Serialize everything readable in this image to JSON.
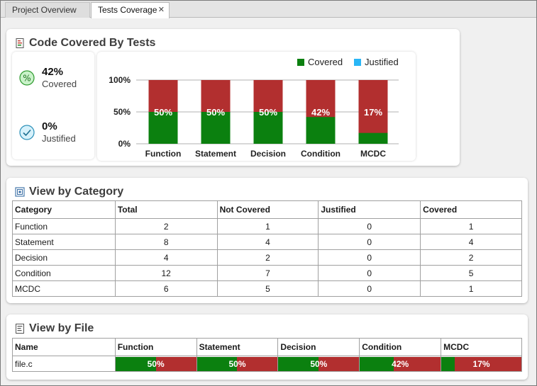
{
  "tabs": [
    {
      "label": "Project Overview",
      "active": false
    },
    {
      "label": "Tests Coverage",
      "active": true,
      "close": "✕"
    }
  ],
  "summary": {
    "title": "Code Covered By Tests",
    "covered": {
      "value": "42%",
      "label": "Covered"
    },
    "justified": {
      "value": "0%",
      "label": "Justified"
    }
  },
  "chart_data": {
    "type": "bar",
    "stacked": true,
    "categories": [
      "Function",
      "Statement",
      "Decision",
      "Condition",
      "MCDC"
    ],
    "series": [
      {
        "name": "Covered",
        "color": "#0b800f",
        "values": [
          50,
          50,
          50,
          42,
          17
        ]
      },
      {
        "name": "Justified",
        "color": "#29b6f6",
        "values": [
          0,
          0,
          0,
          0,
          0
        ]
      }
    ],
    "remainder_color": "#b22f2f",
    "data_labels": [
      "50%",
      "50%",
      "50%",
      "42%",
      "17%"
    ],
    "yticks": [
      "0%",
      "50%",
      "100%"
    ],
    "ylim": [
      0,
      100
    ],
    "legend": "top-right",
    "grid": true
  },
  "category": {
    "title": "View by Category",
    "columns": [
      "Category",
      "Total",
      "Not Covered",
      "Justified",
      "Covered"
    ],
    "rows": [
      [
        "Function",
        "2",
        "1",
        "0",
        "1"
      ],
      [
        "Statement",
        "8",
        "4",
        "0",
        "4"
      ],
      [
        "Decision",
        "4",
        "2",
        "0",
        "2"
      ],
      [
        "Condition",
        "12",
        "7",
        "0",
        "5"
      ],
      [
        "MCDC",
        "6",
        "5",
        "0",
        "1"
      ]
    ]
  },
  "file": {
    "title": "View by File",
    "columns": [
      "Name",
      "Function",
      "Statement",
      "Decision",
      "Condition",
      "MCDC"
    ],
    "rows": [
      {
        "name": "file.c",
        "values": [
          50,
          50,
          50,
          42,
          17
        ],
        "labels": [
          "50%",
          "50%",
          "50%",
          "42%",
          "17%"
        ]
      }
    ]
  },
  "icons": {
    "summary": "code-coverage-icon",
    "category": "category-icon",
    "file": "file-list-icon",
    "covered": "percent-circle-icon",
    "justified": "check-circle-icon"
  }
}
